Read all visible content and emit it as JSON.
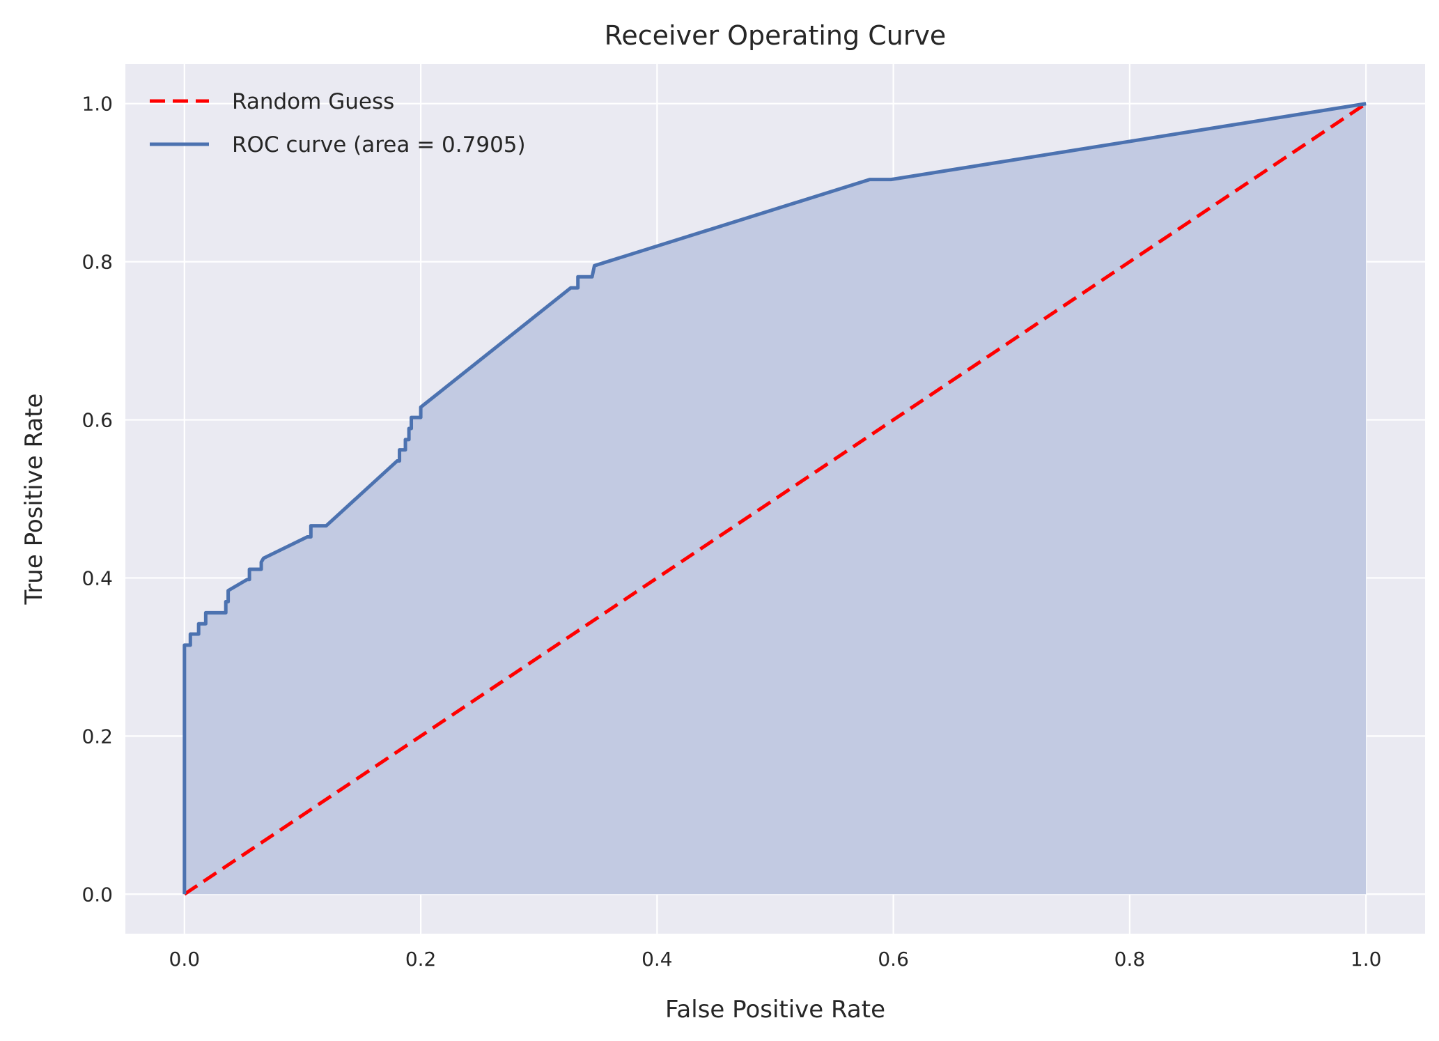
{
  "chart_data": {
    "type": "line",
    "title": "Receiver Operating Curve",
    "xlabel": "False Positive Rate",
    "ylabel": "True Positive Rate",
    "xlim": [
      -0.05,
      1.05
    ],
    "ylim": [
      -0.05,
      1.05
    ],
    "xticks": [
      0.0,
      0.2,
      0.4,
      0.6,
      0.8,
      1.0
    ],
    "yticks": [
      0.0,
      0.2,
      0.4,
      0.6,
      0.8,
      1.0
    ],
    "xtick_labels": [
      "0.0",
      "0.2",
      "0.4",
      "0.6",
      "0.8",
      "1.0"
    ],
    "ytick_labels": [
      "0.0",
      "0.2",
      "0.4",
      "0.6",
      "0.8",
      "1.0"
    ],
    "grid": true,
    "legend_position": "top-left",
    "series": [
      {
        "name": "Random Guess",
        "color": "#ff0000",
        "style": "dashed",
        "x": [
          0.0,
          1.0
        ],
        "y": [
          0.0,
          1.0
        ]
      },
      {
        "name": "ROC curve (area = 0.7905)",
        "color": "#4c72b0",
        "fill_color": "#c2cae2",
        "style": "solid",
        "filled": true,
        "x": [
          0.0,
          0.0,
          0.005,
          0.005,
          0.012,
          0.012,
          0.018,
          0.018,
          0.03,
          0.035,
          0.035,
          0.037,
          0.037,
          0.053,
          0.055,
          0.055,
          0.065,
          0.065,
          0.067,
          0.104,
          0.107,
          0.107,
          0.12,
          0.18,
          0.182,
          0.182,
          0.187,
          0.187,
          0.19,
          0.19,
          0.192,
          0.192,
          0.2,
          0.2,
          0.327,
          0.333,
          0.333,
          0.345,
          0.347,
          0.58,
          0.598,
          1.0
        ],
        "y": [
          0.0,
          0.315,
          0.315,
          0.329,
          0.329,
          0.342,
          0.342,
          0.356,
          0.356,
          0.356,
          0.37,
          0.37,
          0.384,
          0.398,
          0.398,
          0.411,
          0.411,
          0.42,
          0.425,
          0.452,
          0.452,
          0.466,
          0.466,
          0.548,
          0.548,
          0.562,
          0.562,
          0.575,
          0.575,
          0.589,
          0.589,
          0.603,
          0.603,
          0.616,
          0.767,
          0.767,
          0.781,
          0.781,
          0.795,
          0.904,
          0.904,
          1.0
        ]
      }
    ]
  },
  "style": {
    "background": "#ffffff",
    "plot_background": "#eaeaf2",
    "grid_color": "#ffffff",
    "text_color": "#262626"
  }
}
